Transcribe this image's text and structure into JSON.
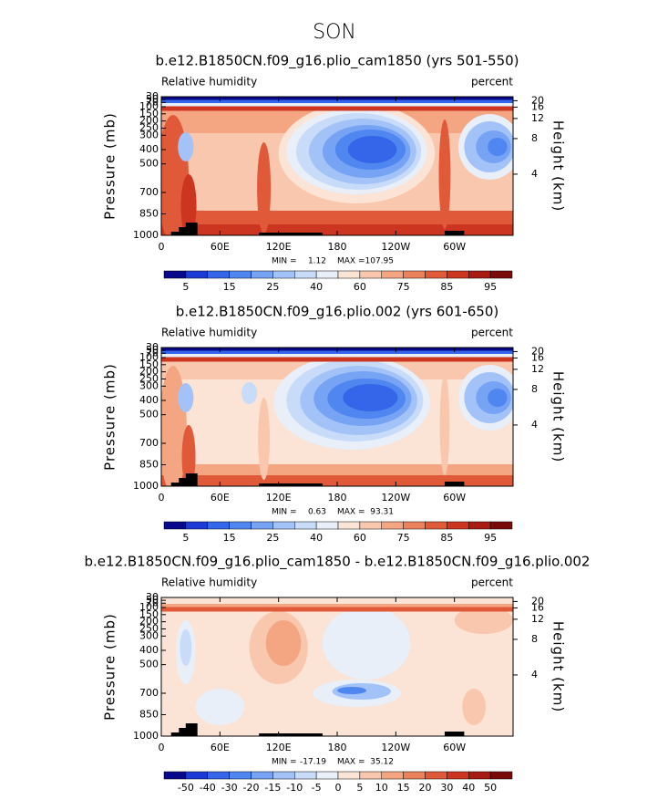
{
  "title": "SON",
  "chart_data": [
    {
      "type": "contour",
      "title": "b.e12.B1850CN.f09_g16.plio_cam1850 (yrs 501-550)",
      "subtitle_left": "Relative humidity",
      "subtitle_right": "percent",
      "ylabel": "Pressure (mb)",
      "y2label": "Height (km)",
      "xlim": [
        0,
        360
      ],
      "xticks": [
        0,
        {
          "value": 60,
          "label": "60E"
        },
        {
          "value": 120,
          "label": "120E"
        },
        180,
        {
          "value": 240,
          "label": "120W"
        },
        {
          "value": 300,
          "label": "60W"
        }
      ],
      "ylim": [
        1000,
        30
      ],
      "yticks": [
        1000,
        850,
        700,
        500,
        400,
        300,
        250,
        200,
        150,
        100,
        70,
        50,
        30
      ],
      "y2ticks": [
        4,
        8,
        12,
        16,
        20
      ],
      "min_label": "MIN =",
      "min": 1.12,
      "max_label": "MAX =",
      "max": 107.95,
      "colorbar": {
        "levels": [
          5,
          15,
          25,
          40,
          60,
          75,
          85,
          95
        ],
        "colors": [
          "#08088a",
          "#1c3bd6",
          "#3565e8",
          "#4f86f0",
          "#77a3f5",
          "#a3c3f8",
          "#c8dcf9",
          "#e8eff8",
          "#fbe4d6",
          "#f9c7ad",
          "#f4a683",
          "#ec825c",
          "#e05a3a",
          "#cc3520",
          "#a81b12",
          "#7a0a0a"
        ]
      }
    },
    {
      "type": "contour",
      "title": "b.e12.B1850CN.f09_g16.plio.002 (yrs 601-650)",
      "subtitle_left": "Relative humidity",
      "subtitle_right": "percent",
      "ylabel": "Pressure (mb)",
      "y2label": "Height (km)",
      "xlim": [
        0,
        360
      ],
      "xticks": [
        0,
        {
          "value": 60,
          "label": "60E"
        },
        {
          "value": 120,
          "label": "120E"
        },
        180,
        {
          "value": 240,
          "label": "120W"
        },
        {
          "value": 300,
          "label": "60W"
        }
      ],
      "ylim": [
        1000,
        30
      ],
      "yticks": [
        1000,
        850,
        700,
        500,
        400,
        300,
        250,
        200,
        150,
        100,
        70,
        50,
        30
      ],
      "y2ticks": [
        4,
        8,
        12,
        16,
        20
      ],
      "min_label": "MIN =",
      "min": 0.63,
      "max_label": "MAX =",
      "max": 93.31,
      "colorbar": {
        "levels": [
          5,
          15,
          25,
          40,
          60,
          75,
          85,
          95
        ],
        "colors": [
          "#08088a",
          "#1c3bd6",
          "#3565e8",
          "#4f86f0",
          "#77a3f5",
          "#a3c3f8",
          "#c8dcf9",
          "#e8eff8",
          "#fbe4d6",
          "#f9c7ad",
          "#f4a683",
          "#ec825c",
          "#e05a3a",
          "#cc3520",
          "#a81b12",
          "#7a0a0a"
        ]
      }
    },
    {
      "type": "contour",
      "title": "b.e12.B1850CN.f09_g16.plio_cam1850 - b.e12.B1850CN.f09_g16.plio.002",
      "subtitle_left": "Relative humidity",
      "subtitle_right": "percent",
      "ylabel": "Pressure (mb)",
      "y2label": "Height (km)",
      "xlim": [
        0,
        360
      ],
      "xticks": [
        0,
        {
          "value": 60,
          "label": "60E"
        },
        {
          "value": 120,
          "label": "120E"
        },
        180,
        {
          "value": 240,
          "label": "120W"
        },
        {
          "value": 300,
          "label": "60W"
        }
      ],
      "ylim": [
        1000,
        30
      ],
      "yticks": [
        1000,
        850,
        700,
        500,
        400,
        300,
        250,
        200,
        150,
        100,
        70,
        50,
        30
      ],
      "y2ticks": [
        4,
        8,
        12,
        16,
        20
      ],
      "min_label": "MIN =",
      "min": -17.19,
      "max_label": "MAX =",
      "max": 35.12,
      "colorbar": {
        "levels": [
          -50,
          -40,
          -30,
          -20,
          -15,
          -10,
          -5,
          0,
          5,
          10,
          15,
          20,
          30,
          40,
          50
        ],
        "colors": [
          "#08088a",
          "#1c3bd6",
          "#3565e8",
          "#4f86f0",
          "#77a3f5",
          "#a3c3f8",
          "#c8dcf9",
          "#e8eff8",
          "#fbe4d6",
          "#f9c7ad",
          "#f4a683",
          "#ec825c",
          "#e05a3a",
          "#cc3520",
          "#a81b12",
          "#7a0a0a"
        ]
      }
    }
  ]
}
